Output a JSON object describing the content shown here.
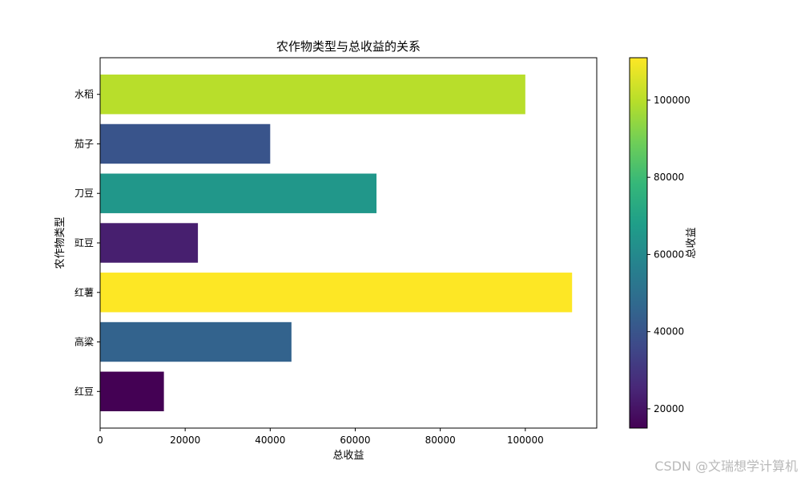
{
  "chart_data": {
    "type": "bar",
    "orientation": "horizontal",
    "title": "农作物类型与总收益的关系",
    "xlabel": "总收益",
    "ylabel": "农作物类型",
    "categories": [
      "红豆",
      "高粱",
      "红薯",
      "豇豆",
      "刀豆",
      "茄子",
      "水稻"
    ],
    "values": [
      15000,
      45000,
      111000,
      23000,
      65000,
      40000,
      100000
    ],
    "xlim": [
      0,
      116800
    ],
    "xticks": [
      0,
      20000,
      40000,
      60000,
      80000,
      100000
    ],
    "grid": false,
    "colormap": "viridis",
    "colorbar": {
      "label": "总收益",
      "range": [
        15000,
        111000
      ],
      "ticks": [
        20000,
        40000,
        60000,
        80000,
        100000
      ]
    }
  },
  "watermark": "CSDN @文瑞想学计算机"
}
